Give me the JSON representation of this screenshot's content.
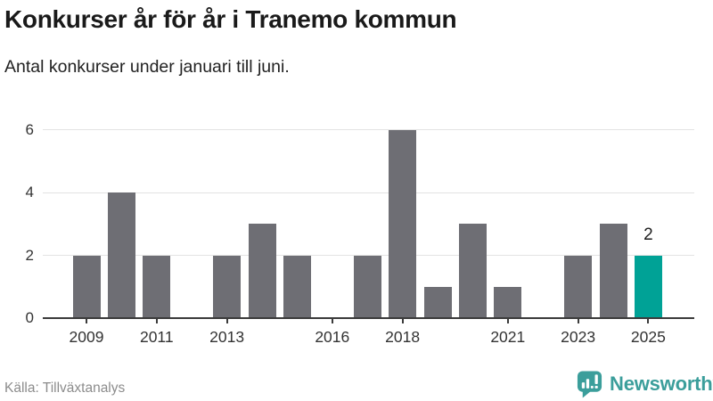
{
  "chart_data": {
    "type": "bar",
    "title": "Konkurser år för år i Tranemo kommun",
    "subtitle": "Antal konkurser under januari till juni.",
    "categories": [
      2009,
      2010,
      2011,
      2012,
      2013,
      2014,
      2015,
      2016,
      2017,
      2018,
      2019,
      2020,
      2021,
      2022,
      2023,
      2024,
      2025
    ],
    "values": [
      2,
      4,
      2,
      0,
      2,
      3,
      2,
      0,
      2,
      6,
      1,
      3,
      1,
      0,
      2,
      3,
      2
    ],
    "xlabel": "",
    "ylabel": "",
    "ylim": [
      0,
      6
    ],
    "y_axis_ticks": [
      0,
      2,
      4,
      6
    ],
    "x_axis_ticks": [
      2009,
      2011,
      2013,
      2016,
      2018,
      2021,
      2023,
      2025
    ],
    "grid": true,
    "legend": false,
    "bar_color": "#6e6e74",
    "highlight": {
      "year": 2025,
      "value": 2,
      "value_label": "2",
      "color": "#00a296"
    }
  },
  "footer": {
    "source": "Källa: Tillväxtanalys",
    "brand": "Newsworthy",
    "brand_color": "#3b9e9b",
    "logo_icon": "bar-chart-speech-bubble-icon"
  }
}
